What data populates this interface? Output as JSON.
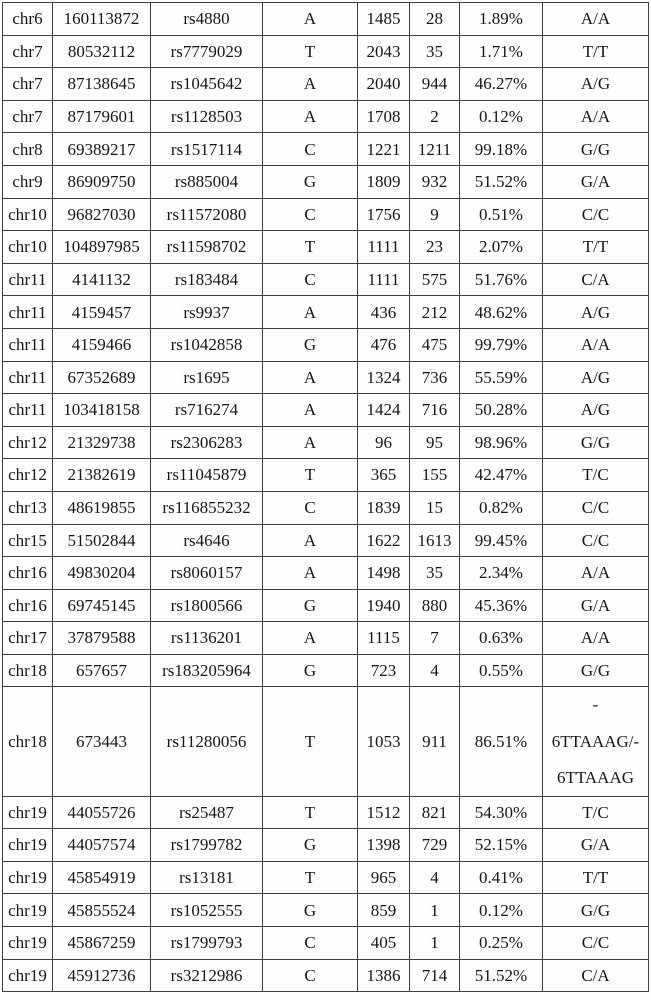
{
  "table": {
    "rows": [
      [
        "chr6",
        "160113872",
        "rs4880",
        "A",
        "1485",
        "28",
        "1.89%",
        "A/A"
      ],
      [
        "chr7",
        "80532112",
        "rs7779029",
        "T",
        "2043",
        "35",
        "1.71%",
        "T/T"
      ],
      [
        "chr7",
        "87138645",
        "rs1045642",
        "A",
        "2040",
        "944",
        "46.27%",
        "A/G"
      ],
      [
        "chr7",
        "87179601",
        "rs1128503",
        "A",
        "1708",
        "2",
        "0.12%",
        "A/A"
      ],
      [
        "chr8",
        "69389217",
        "rs1517114",
        "C",
        "1221",
        "1211",
        "99.18%",
        "G/G"
      ],
      [
        "chr9",
        "86909750",
        "rs885004",
        "G",
        "1809",
        "932",
        "51.52%",
        "G/A"
      ],
      [
        "chr10",
        "96827030",
        "rs11572080",
        "C",
        "1756",
        "9",
        "0.51%",
        "C/C"
      ],
      [
        "chr10",
        "104897985",
        "rs11598702",
        "T",
        "1111",
        "23",
        "2.07%",
        "T/T"
      ],
      [
        "chr11",
        "4141132",
        "rs183484",
        "C",
        "1111",
        "575",
        "51.76%",
        "C/A"
      ],
      [
        "chr11",
        "4159457",
        "rs9937",
        "A",
        "436",
        "212",
        "48.62%",
        "A/G"
      ],
      [
        "chr11",
        "4159466",
        "rs1042858",
        "G",
        "476",
        "475",
        "99.79%",
        "A/A"
      ],
      [
        "chr11",
        "67352689",
        "rs1695",
        "A",
        "1324",
        "736",
        "55.59%",
        "A/G"
      ],
      [
        "chr11",
        "103418158",
        "rs716274",
        "A",
        "1424",
        "716",
        "50.28%",
        "A/G"
      ],
      [
        "chr12",
        "21329738",
        "rs2306283",
        "A",
        "96",
        "95",
        "98.96%",
        "G/G"
      ],
      [
        "chr12",
        "21382619",
        "rs11045879",
        "T",
        "365",
        "155",
        "42.47%",
        "T/C"
      ],
      [
        "chr13",
        "48619855",
        "rs116855232",
        "C",
        "1839",
        "15",
        "0.82%",
        "C/C"
      ],
      [
        "chr15",
        "51502844",
        "rs4646",
        "A",
        "1622",
        "1613",
        "99.45%",
        "C/C"
      ],
      [
        "chr16",
        "49830204",
        "rs8060157",
        "A",
        "1498",
        "35",
        "2.34%",
        "A/A"
      ],
      [
        "chr16",
        "69745145",
        "rs1800566",
        "G",
        "1940",
        "880",
        "45.36%",
        "G/A"
      ],
      [
        "chr17",
        "37879588",
        "rs1136201",
        "A",
        "1115",
        "7",
        "0.63%",
        "A/A"
      ],
      [
        "chr18",
        "657657",
        "rs183205964",
        "G",
        "723",
        "4",
        "0.55%",
        "G/G"
      ],
      [
        "chr18",
        "673443",
        "rs11280056",
        "T",
        "1053",
        "911",
        "86.51%",
        "-\n6TTAAAG/-\n6TTAAAG"
      ],
      [
        "chr19",
        "44055726",
        "rs25487",
        "T",
        "1512",
        "821",
        "54.30%",
        "T/C"
      ],
      [
        "chr19",
        "44057574",
        "rs1799782",
        "G",
        "1398",
        "729",
        "52.15%",
        "G/A"
      ],
      [
        "chr19",
        "45854919",
        "rs13181",
        "T",
        "965",
        "4",
        "0.41%",
        "T/T"
      ],
      [
        "chr19",
        "45855524",
        "rs1052555",
        "G",
        "859",
        "1",
        "0.12%",
        "G/G"
      ],
      [
        "chr19",
        "45867259",
        "rs1799793",
        "C",
        "405",
        "1",
        "0.25%",
        "C/C"
      ],
      [
        "chr19",
        "45912736",
        "rs3212986",
        "C",
        "1386",
        "714",
        "51.52%",
        "C/A"
      ]
    ]
  }
}
